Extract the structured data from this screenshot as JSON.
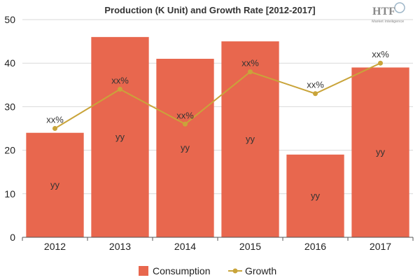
{
  "chart_data": {
    "type": "bar",
    "title": "Production (K Unit) and Growth Rate [2012-2017]",
    "categories": [
      "2012",
      "2013",
      "2014",
      "2015",
      "2016",
      "2017"
    ],
    "ylim": [
      0,
      50
    ],
    "yticks": [
      "0",
      "10",
      "20",
      "30",
      "40",
      "50"
    ],
    "grid": true,
    "legend_position": "bottom",
    "series": [
      {
        "name": "Consumption",
        "type": "bar",
        "color": "#e8674e",
        "values": [
          24,
          46,
          41,
          45,
          19,
          39
        ],
        "labels": [
          "yy",
          "yy",
          "yy",
          "yy",
          "yy",
          "yy"
        ]
      },
      {
        "name": "Growth",
        "type": "line",
        "color": "#c9a43a",
        "values": [
          25,
          34,
          26,
          38,
          33,
          40
        ],
        "labels": [
          "xx%",
          "xx%",
          "xx%",
          "xx%",
          "xx%",
          "xx%"
        ]
      }
    ]
  },
  "logo": {
    "main": "HTF",
    "sub": "Market Intelligence"
  }
}
